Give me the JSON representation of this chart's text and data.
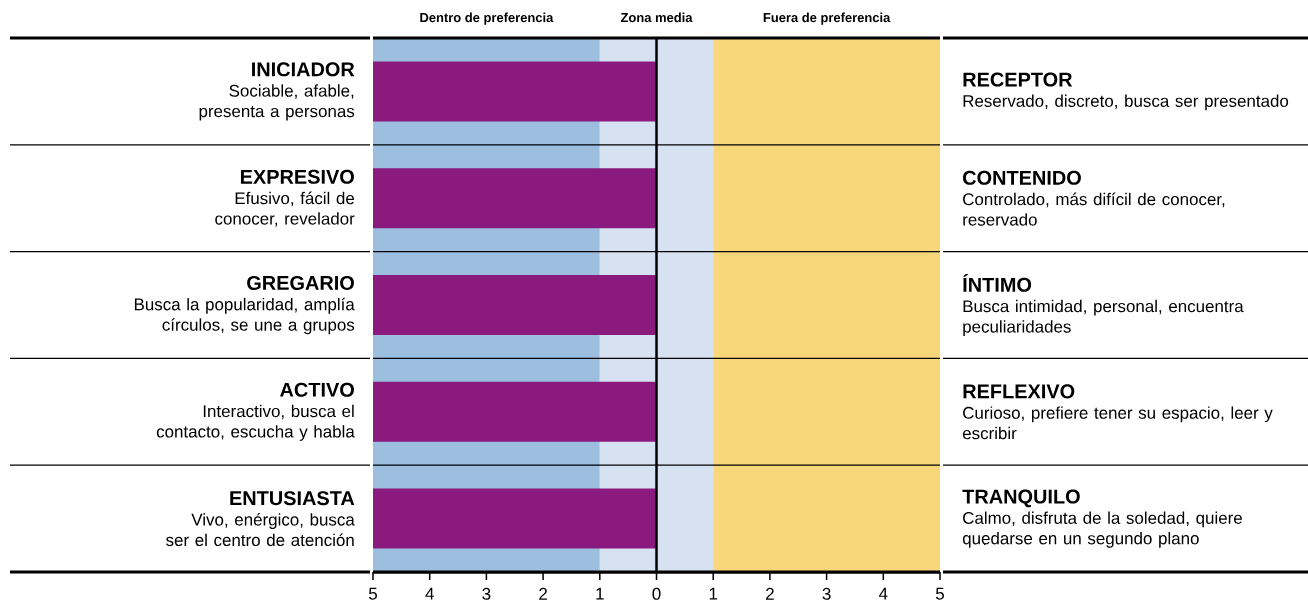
{
  "chart_data": {
    "type": "bar",
    "orientation": "horizontal",
    "categories": [
      "**INICIADOR** Sociable, afable, presenta a personas",
      "**EXPRESIVO** Efusivo, fácil de conocer, revelador",
      "**GREGARIO** Busca la popularidad, amplía círculos, se une a grupos",
      "**ACTIVO** Interactivo, busca el contacto, escucha y habla",
      "**ENTUSIASTA** Vivo, enérgico, busca ser el centro de atención"
    ],
    "values": [
      -5,
      -5,
      -5,
      -5,
      -5
    ],
    "color": "#8b1a7f",
    "xlim": [
      -5,
      5
    ],
    "xticks": [
      {
        "value": -5,
        "label": "5"
      },
      {
        "value": -4,
        "label": "4"
      },
      {
        "value": -3,
        "label": "3"
      },
      {
        "value": -2,
        "label": "2"
      },
      {
        "value": -1,
        "label": "1"
      },
      0,
      1,
      2,
      3,
      4,
      5
    ],
    "bands": [
      {
        "axis": "x",
        "from": -5,
        "to": -1,
        "label": "Dentro de preferencia",
        "color": "#9dbfdf"
      },
      {
        "axis": "x",
        "from": -1,
        "to": 1,
        "label": "Zona media",
        "color": "#d6e2f1"
      },
      {
        "axis": "x",
        "from": 1,
        "to": 5,
        "label": "Fuera de preferencia",
        "color": "#f8d77a"
      }
    ],
    "ref_lines": [
      {
        "axis": "x",
        "value": 0,
        "color": "#000000",
        "line_style": "solid"
      }
    ],
    "annotations": [
      "**RECEPTOR** Reservado, discreto, busca ser presentado",
      "**CONTENIDO** Controlado, más difícil de conocer, reservado",
      "**ÍNTIMO** Busca intimidad, personal, encuentra peculiaridades",
      "**REFLEXIVO** Curioso, prefiere tener su espacio, leer y escribir",
      "**TRANQUILO** Calmo, disfruta de la soledad, quiere quedarse en un segundo plano"
    ],
    "grid": false
  }
}
